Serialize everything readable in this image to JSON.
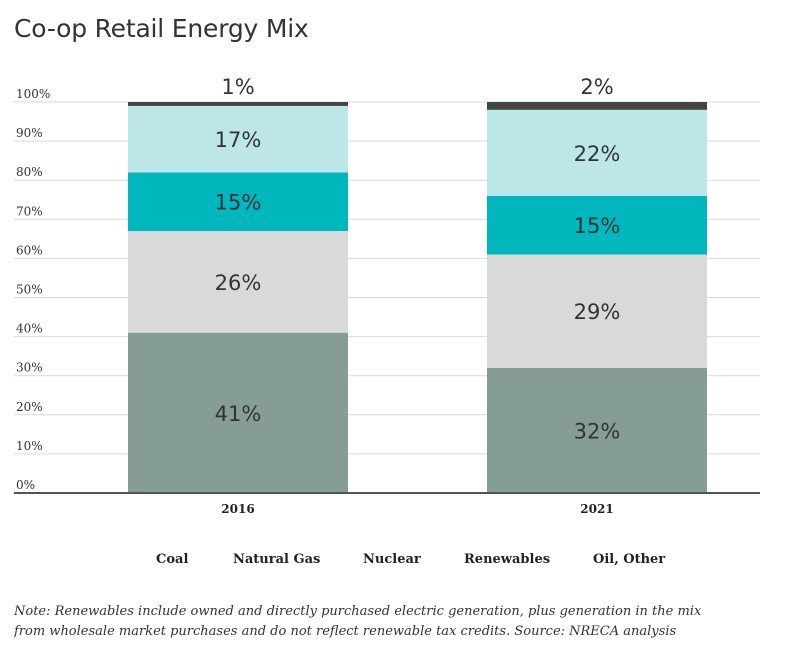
{
  "chart_data": {
    "type": "bar",
    "stacked": true,
    "title": "Co-op Retail Energy Mix",
    "categories": [
      "2016",
      "2021"
    ],
    "series": [
      {
        "name": "Coal",
        "values": [
          41,
          32
        ],
        "labels": [
          "41%",
          "32%"
        ],
        "color": "#869d94"
      },
      {
        "name": "Natural Gas",
        "values": [
          26,
          29
        ],
        "labels": [
          "26%",
          "29%"
        ],
        "color": "#d7dad9"
      },
      {
        "name": "Renewables",
        "values": [
          15,
          15
        ],
        "labels": [
          "15%",
          "15%"
        ],
        "color": "#00b7bd"
      },
      {
        "name": "Oil, Other",
        "values": [
          17,
          22
        ],
        "labels": [
          "17%",
          "22%"
        ],
        "color": "#bde6e9"
      },
      {
        "name": "Nuclear",
        "values": [
          1,
          2
        ],
        "labels": [
          "1%",
          "2%"
        ],
        "color": "#444444"
      }
    ],
    "ylim": [
      0,
      100
    ],
    "yticks": [
      "0%",
      "10%",
      "20%",
      "30%",
      "40%",
      "50%",
      "60%",
      "70%",
      "80%",
      "90%",
      "100%"
    ],
    "grid": true,
    "legend": [
      "Coal",
      "Natural Gas",
      "Nuclear",
      "Renewables",
      "Oil, Other"
    ],
    "legend_position": "bottom"
  },
  "note": {
    "line1": "Note: Renewables include owned and directly purchased electric generation, plus generation in the mix",
    "line2": "from wholesale market purchases and do not reflect renewable tax credits. Source: NRECA analysis"
  }
}
